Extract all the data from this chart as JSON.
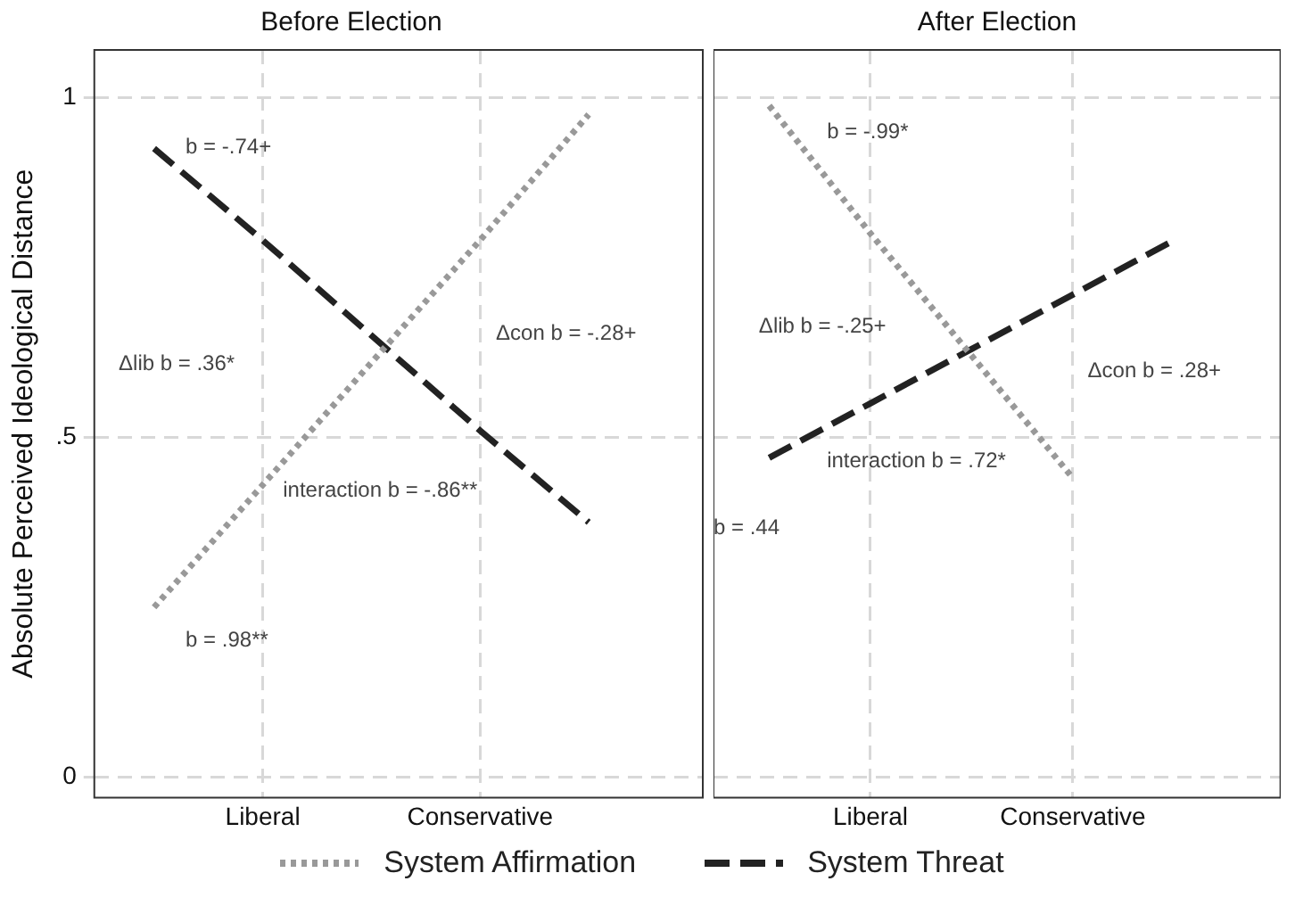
{
  "chart_data": [
    {
      "type": "line",
      "title": "Before Election",
      "ylabel": "Absolute Perceived Ideological Distance",
      "categories": [
        null,
        "Liberal",
        null,
        "Conservative",
        null,
        null
      ],
      "ylim": [
        -0.03,
        1.07
      ],
      "yticks": [
        0,
        {
          "value": 0.5,
          "label": ".5"
        },
        1
      ],
      "grid": true,
      "legend": "bottom",
      "marker": "none",
      "series": [
        {
          "name": "System Affirmation",
          "color": "#999999",
          "line_style": "dotted",
          "values": [
            0.25,
            0.43,
            0.61,
            0.79,
            0.975,
            null
          ]
        },
        {
          "name": "System Threat",
          "color": "#222222",
          "line_style": "dashed",
          "values": [
            0.925,
            0.79,
            0.65,
            0.51,
            0.375,
            null
          ]
        }
      ],
      "annotations": [
        "b = -.74+",
        "Δlib b = .36*",
        "Δcon b = -.28+",
        "interaction b = -.86**",
        "b = .98**"
      ]
    },
    {
      "type": "line",
      "title": "After Election",
      "categories": [
        null,
        "Liberal",
        null,
        "Conservative",
        null,
        null
      ],
      "ylim": [
        -0.03,
        1.07
      ],
      "yticks": [
        0,
        0.5,
        1
      ],
      "tick_labels": "x",
      "grid": true,
      "marker": "none",
      "series": [
        {
          "color": "#999999",
          "line_style": "dotted",
          "values": [
            0.988,
            0.8,
            0.62,
            0.44,
            null,
            null
          ]
        },
        {
          "color": "#222222",
          "line_style": "dashed",
          "values": [
            0.47,
            0.55,
            0.63,
            0.71,
            0.79,
            null
          ]
        }
      ],
      "annotations": [
        "b = -.99*",
        "Δlib b = -.25+",
        "Δcon b = .28+",
        "interaction b = .72*",
        "b = .44"
      ]
    }
  ]
}
